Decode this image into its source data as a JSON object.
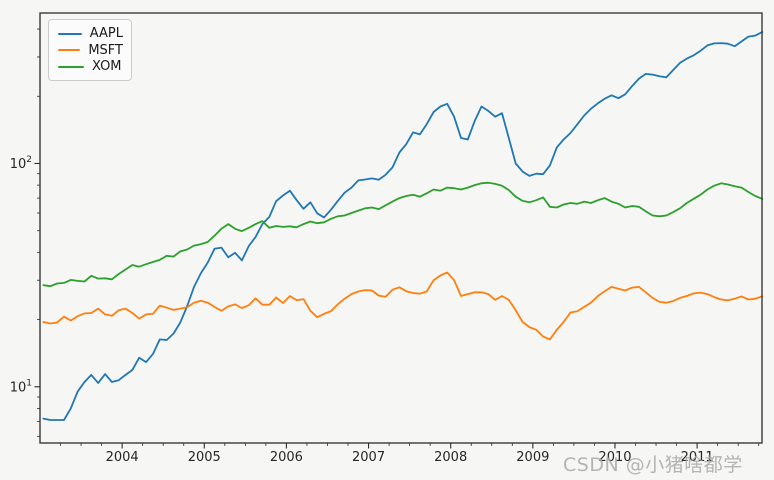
{
  "watermark": {
    "text": "CSDN @小猪啥都学",
    "color": "#a8a8a8"
  },
  "colors": {
    "background": "#f6f6f5",
    "spine": "#2b2b2b",
    "tick_label": "#262626",
    "aapl": "#1f77b4",
    "msft": "#ff7f0e",
    "xom": "#2ca02c"
  },
  "legend": {
    "position": "upper left",
    "items": [
      "AAPL",
      "MSFT",
      "XOM"
    ]
  },
  "chart_data": {
    "type": "line",
    "title": "",
    "xlabel": "",
    "ylabel": "",
    "yscale": "log",
    "grid": false,
    "xlim": [
      2003.0,
      2011.79
    ],
    "ylim": [
      5.6,
      472
    ],
    "x_tick_labels": [
      "2004",
      "2005",
      "2006",
      "2007",
      "2008",
      "2009",
      "2010",
      "2011"
    ],
    "x_tick_values": [
      2004,
      2005,
      2006,
      2007,
      2008,
      2009,
      2010,
      2011
    ],
    "x_minor_step": 0.25,
    "y_ticks": [
      {
        "v": 10,
        "base": "10",
        "exp": "1"
      },
      {
        "v": 100,
        "base": "10",
        "exp": "2"
      }
    ],
    "y_minor_ticks": [
      6,
      7,
      8,
      9,
      20,
      30,
      40,
      50,
      60,
      70,
      80,
      90,
      200,
      300,
      400
    ],
    "x": [
      2003.042,
      2003.125,
      2003.208,
      2003.292,
      2003.375,
      2003.458,
      2003.542,
      2003.625,
      2003.708,
      2003.792,
      2003.875,
      2003.958,
      2004.042,
      2004.125,
      2004.208,
      2004.292,
      2004.375,
      2004.458,
      2004.542,
      2004.625,
      2004.708,
      2004.792,
      2004.875,
      2004.958,
      2005.042,
      2005.125,
      2005.208,
      2005.292,
      2005.375,
      2005.458,
      2005.542,
      2005.625,
      2005.708,
      2005.792,
      2005.875,
      2005.958,
      2006.042,
      2006.125,
      2006.208,
      2006.292,
      2006.375,
      2006.458,
      2006.542,
      2006.625,
      2006.708,
      2006.792,
      2006.875,
      2006.958,
      2007.042,
      2007.125,
      2007.208,
      2007.292,
      2007.375,
      2007.458,
      2007.542,
      2007.625,
      2007.708,
      2007.792,
      2007.875,
      2007.958,
      2008.042,
      2008.125,
      2008.208,
      2008.292,
      2008.375,
      2008.458,
      2008.542,
      2008.625,
      2008.708,
      2008.792,
      2008.875,
      2008.958,
      2009.042,
      2009.125,
      2009.208,
      2009.292,
      2009.375,
      2009.458,
      2009.542,
      2009.625,
      2009.708,
      2009.792,
      2009.875,
      2009.958,
      2010.042,
      2010.125,
      2010.208,
      2010.292,
      2010.375,
      2010.458,
      2010.542,
      2010.625,
      2010.708,
      2010.792,
      2010.875,
      2010.958,
      2011.042,
      2011.125,
      2011.208,
      2011.292,
      2011.375,
      2011.458,
      2011.542,
      2011.625,
      2011.708,
      2011.792
    ],
    "series": [
      {
        "name": "AAPL",
        "color": "#1f77b4",
        "values": [
          7.2,
          7.1,
          7.1,
          7.1,
          8.0,
          9.5,
          10.5,
          11.3,
          10.4,
          11.4,
          10.5,
          10.7,
          11.3,
          11.9,
          13.5,
          12.9,
          14.0,
          16.3,
          16.2,
          17.3,
          19.4,
          23.0,
          28.0,
          32.2,
          36.0,
          41.5,
          42.0,
          38.0,
          39.8,
          36.8,
          42.7,
          46.9,
          53.6,
          57.6,
          67.8,
          71.9,
          75.5,
          68.5,
          62.7,
          67.0,
          59.8,
          57.3,
          62.0,
          68.0,
          74.0,
          78.0,
          84.0,
          84.8,
          85.7,
          84.6,
          89.0,
          96.0,
          112.0,
          122.0,
          138.0,
          135.0,
          150.0,
          170.0,
          180.0,
          185.0,
          162.0,
          130.0,
          128.0,
          155.0,
          180.0,
          172.0,
          162.0,
          168.0,
          130.0,
          100.0,
          92.0,
          88.0,
          90.0,
          89.5,
          98.0,
          118.0,
          128.0,
          137.0,
          150.0,
          164.0,
          176.0,
          186.0,
          195.0,
          202.0,
          196.0,
          204.0,
          222.0,
          240.0,
          252.0,
          250.0,
          246.0,
          243.0,
          262.0,
          282.0,
          295.0,
          305.0,
          320.0,
          338.0,
          345.0,
          346.0,
          344.0,
          335.0,
          352.0,
          370.0,
          374.0,
          388.0
        ]
      },
      {
        "name": "MSFT",
        "color": "#ff7f0e",
        "values": [
          19.5,
          19.2,
          19.4,
          20.6,
          19.8,
          20.7,
          21.3,
          21.4,
          22.4,
          21.1,
          20.8,
          22.0,
          22.4,
          21.4,
          20.2,
          21.1,
          21.2,
          23.1,
          22.6,
          22.1,
          22.4,
          22.7,
          23.8,
          24.3,
          23.8,
          22.8,
          21.9,
          22.9,
          23.4,
          22.5,
          23.2,
          24.9,
          23.3,
          23.3,
          25.1,
          23.7,
          25.5,
          24.4,
          24.7,
          21.9,
          20.5,
          21.2,
          21.8,
          23.4,
          24.8,
          26.0,
          26.7,
          27.1,
          27.0,
          25.6,
          25.3,
          27.2,
          27.9,
          26.8,
          26.3,
          26.1,
          26.7,
          30.0,
          31.5,
          32.5,
          30.0,
          25.5,
          26.0,
          26.5,
          26.5,
          26.0,
          24.5,
          25.5,
          24.5,
          22.0,
          19.5,
          18.5,
          18.0,
          16.8,
          16.3,
          18.0,
          19.5,
          21.5,
          21.8,
          22.8,
          23.8,
          25.5,
          26.8,
          28.0,
          27.5,
          27.0,
          27.8,
          28.0,
          26.5,
          25.0,
          24.0,
          23.8,
          24.2,
          25.0,
          25.5,
          26.2,
          26.4,
          26.0,
          25.2,
          24.6,
          24.4,
          24.8,
          25.4,
          24.6,
          24.8,
          25.4
        ]
      },
      {
        "name": "XOM",
        "color": "#2ca02c",
        "values": [
          28.5,
          28.2,
          29.0,
          29.2,
          30.1,
          29.8,
          29.6,
          31.4,
          30.5,
          30.6,
          30.3,
          32.0,
          33.5,
          35.1,
          34.5,
          35.4,
          36.2,
          37.0,
          38.6,
          38.3,
          40.4,
          41.2,
          42.9,
          43.5,
          44.5,
          47.5,
          51.0,
          53.5,
          51.0,
          49.8,
          51.5,
          53.5,
          55.2,
          51.5,
          52.5,
          52.0,
          52.3,
          51.8,
          53.5,
          55.0,
          54.0,
          54.5,
          56.5,
          58.0,
          58.5,
          60.0,
          61.5,
          63.0,
          63.5,
          62.5,
          65.0,
          67.5,
          70.0,
          71.5,
          72.5,
          71.0,
          73.5,
          76.5,
          75.5,
          78.0,
          77.5,
          76.5,
          78.0,
          80.0,
          81.5,
          82.0,
          81.0,
          79.5,
          76.0,
          71.0,
          68.0,
          67.0,
          68.5,
          70.5,
          64.0,
          63.5,
          65.5,
          66.5,
          66.0,
          67.5,
          66.5,
          68.5,
          70.0,
          67.5,
          66.0,
          63.5,
          64.5,
          64.0,
          61.0,
          58.5,
          58.0,
          58.5,
          60.5,
          63.0,
          66.5,
          69.5,
          72.5,
          76.5,
          79.5,
          81.5,
          80.5,
          79.0,
          78.0,
          74.5,
          71.5,
          69.5
        ]
      }
    ]
  }
}
